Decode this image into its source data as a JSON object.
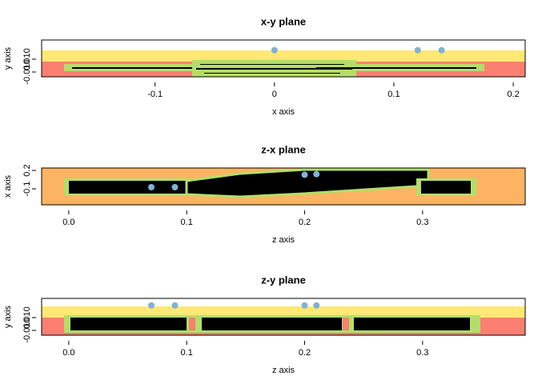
{
  "chart_data": [
    {
      "type": "scatter",
      "title": "x-y plane",
      "xlabel": "x axis",
      "ylabel": "y axis",
      "xlim": [
        -0.195,
        0.21
      ],
      "ylim": [
        -0.0175,
        0.04
      ],
      "xticks": [
        -0.1,
        0,
        0.1,
        0.2
      ],
      "yticks": [
        {
          "value": -0.01,
          "label": "-0.010"
        },
        {
          "value": 0.01,
          "label": "0.010"
        }
      ],
      "x": [
        0,
        0.12,
        0.14
      ],
      "y": [
        0.024,
        0.024,
        0.024
      ],
      "color": "#80b1d3"
    },
    {
      "type": "scatter",
      "title": "z-x plane",
      "xlabel": "z axis",
      "ylabel": "x axis",
      "xlim": [
        -0.023,
        0.387
      ],
      "ylim": [
        -0.36,
        0.24
      ],
      "xticks": [
        {
          "value": 0,
          "label": "0.0"
        },
        0.1,
        0.2,
        0.3
      ],
      "yticks": [
        -0.1,
        0.2
      ],
      "x": [
        0.07,
        0.09,
        0.2,
        0.21
      ],
      "y": [
        -0.073,
        -0.073,
        0.13,
        0.14
      ],
      "color": "#80b1d3"
    },
    {
      "type": "scatter",
      "title": "z-y plane",
      "xlabel": "z axis",
      "ylabel": "y axis",
      "xlim": [
        -0.023,
        0.387
      ],
      "ylim": [
        -0.0175,
        0.04
      ],
      "xticks": [
        {
          "value": 0,
          "label": "0.0"
        },
        0.1,
        0.2,
        0.3
      ],
      "yticks": [
        {
          "value": -0.01,
          "label": "-0.010"
        },
        {
          "value": 0.01,
          "label": "0.010"
        }
      ],
      "x": [
        0.07,
        0.09,
        0.2,
        0.21
      ],
      "y": [
        0.029,
        0.029,
        0.029,
        0.029
      ],
      "color": "#80b1d3"
    }
  ]
}
